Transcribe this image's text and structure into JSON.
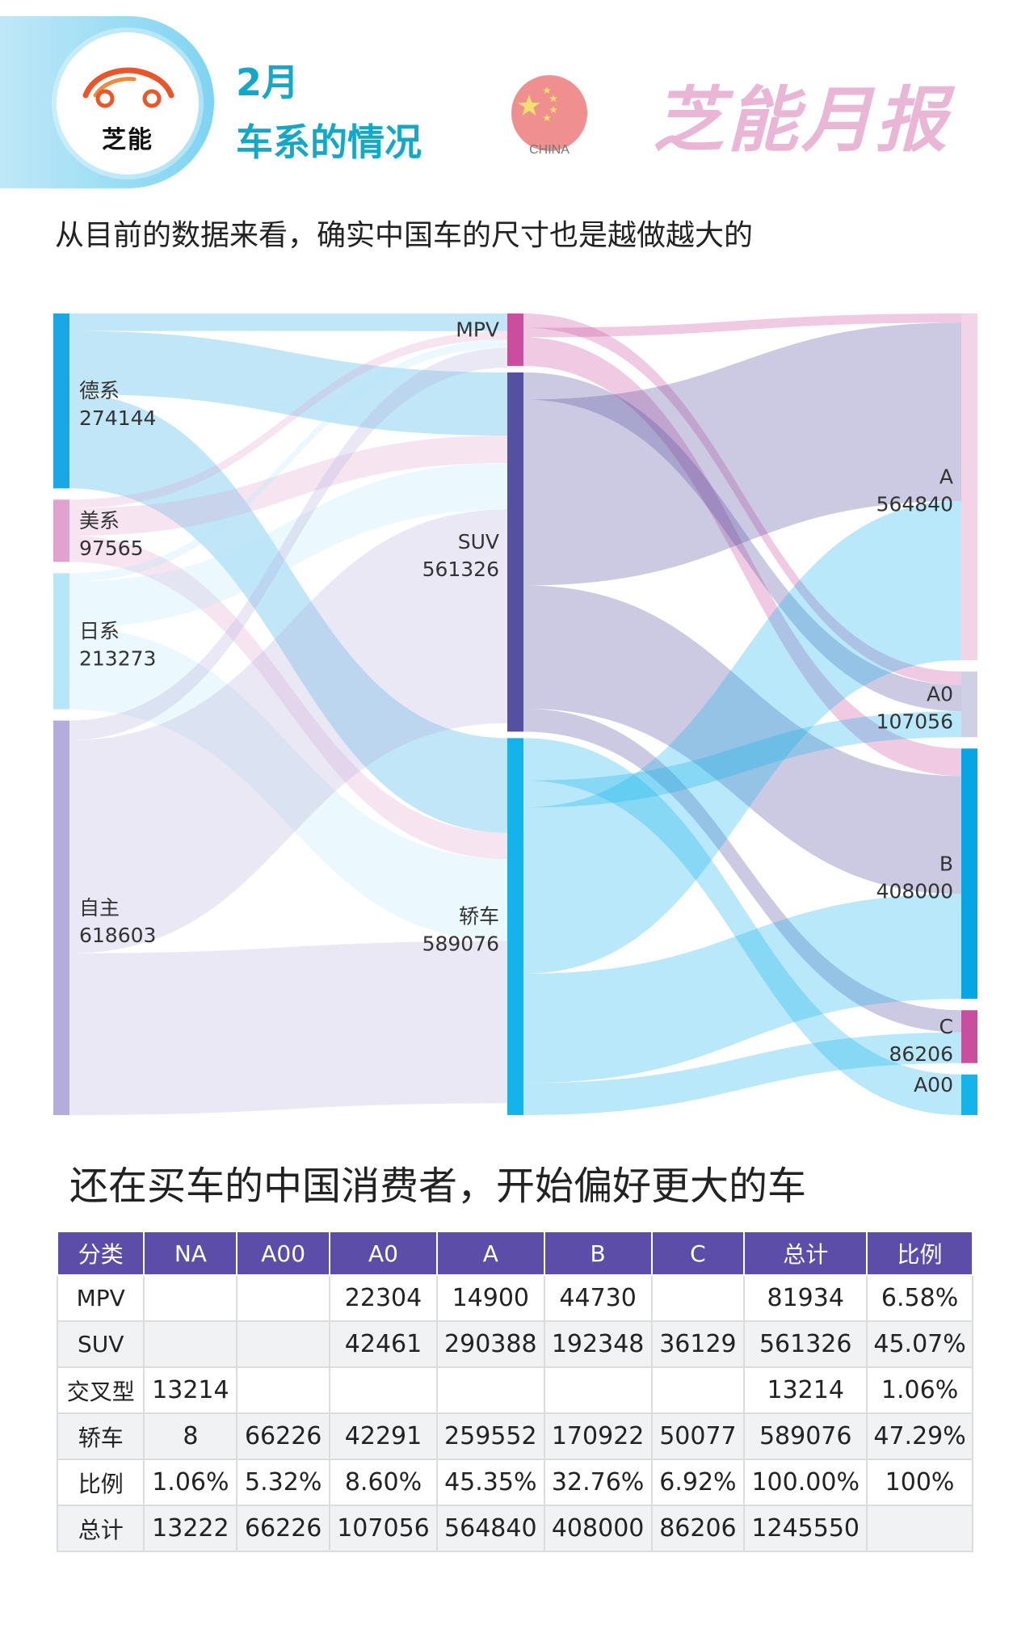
{
  "header": {
    "logo_text": "芝能",
    "month": "2月",
    "title": "车系的情况",
    "flag_label": "CHINA",
    "brand": "芝能月报"
  },
  "subtitle": "从目前的数据来看，确实中国车的尺寸也是越做越大的",
  "chart_data": {
    "type": "sankey",
    "nodes": {
      "origin": [
        {
          "name": "德系",
          "value": 274144
        },
        {
          "name": "美系",
          "value": 97565
        },
        {
          "name": "日系",
          "value": 213273
        },
        {
          "name": "自主",
          "value": 618603
        }
      ],
      "body": [
        {
          "name": "MPV",
          "value": 81934
        },
        {
          "name": "SUV",
          "value": 561326
        },
        {
          "name": "轿车",
          "value": 589076
        }
      ],
      "segment": [
        {
          "name": "A",
          "value": 564840
        },
        {
          "name": "A0",
          "value": 107056
        },
        {
          "name": "B",
          "value": 408000
        },
        {
          "name": "C",
          "value": 86206
        },
        {
          "name": "A00",
          "value": 66226
        }
      ]
    },
    "node_labels": [
      {
        "name": "德系",
        "value": "274144"
      },
      {
        "name": "美系",
        "value": "97565"
      },
      {
        "name": "日系",
        "value": "213273"
      },
      {
        "name": "自主",
        "value": "618603"
      },
      {
        "name": "MPV",
        "value": ""
      },
      {
        "name": "SUV",
        "value": "561326"
      },
      {
        "name": "轿车",
        "value": "589076"
      },
      {
        "name": "A",
        "value": "564840"
      },
      {
        "name": "A0",
        "value": "107056"
      },
      {
        "name": "B",
        "value": "408000"
      },
      {
        "name": "C",
        "value": "86206"
      },
      {
        "name": "A00",
        "value": ""
      }
    ],
    "links_body_to_segment": [
      {
        "source": "MPV",
        "target": "A0",
        "value": 22304
      },
      {
        "source": "MPV",
        "target": "A",
        "value": 14900
      },
      {
        "source": "MPV",
        "target": "B",
        "value": 44730
      },
      {
        "source": "SUV",
        "target": "A0",
        "value": 42461
      },
      {
        "source": "SUV",
        "target": "A",
        "value": 290388
      },
      {
        "source": "SUV",
        "target": "B",
        "value": 192348
      },
      {
        "source": "SUV",
        "target": "C",
        "value": 36129
      },
      {
        "source": "轿车",
        "target": "A00",
        "value": 66226
      },
      {
        "source": "轿车",
        "target": "A0",
        "value": 42291
      },
      {
        "source": "轿车",
        "target": "A",
        "value": 259552
      },
      {
        "source": "轿车",
        "target": "B",
        "value": 170922
      },
      {
        "source": "轿车",
        "target": "C",
        "value": 50077
      }
    ],
    "colors": {
      "origin_de": "#1ba7e6",
      "origin_us": "#e0a3cd",
      "origin_jp": "#b7e6f8",
      "origin_cn": "#b4addb",
      "mpv": "#c94f9e",
      "suv": "#55509f",
      "sedan": "#14b4ea",
      "seg_A": "#f2d4e6",
      "seg_A0": "#cfd0e6",
      "seg_B": "#08a5e4",
      "seg_C": "#c94f9e",
      "seg_A00": "#14b4ea"
    }
  },
  "section2_title": "还在买车的中国消费者，开始偏好更大的车",
  "table": {
    "headers": [
      "分类",
      "NA",
      "A00",
      "A0",
      "A",
      "B",
      "C",
      "总计",
      "比例"
    ],
    "rows": [
      [
        "MPV",
        "",
        "",
        "22304",
        "14900",
        "44730",
        "",
        "81934",
        "6.58%"
      ],
      [
        "SUV",
        "",
        "",
        "42461",
        "290388",
        "192348",
        "36129",
        "561326",
        "45.07%"
      ],
      [
        "交叉型",
        "13214",
        "",
        "",
        "",
        "",
        "",
        "13214",
        "1.06%"
      ],
      [
        "轿车",
        "8",
        "66226",
        "42291",
        "259552",
        "170922",
        "50077",
        "589076",
        "47.29%"
      ],
      [
        "比例",
        "1.06%",
        "5.32%",
        "8.60%",
        "45.35%",
        "32.76%",
        "6.92%",
        "100.00%",
        "100%"
      ],
      [
        "总计",
        "13222",
        "66226",
        "107056",
        "564840",
        "408000",
        "86206",
        "1245550",
        ""
      ]
    ]
  }
}
